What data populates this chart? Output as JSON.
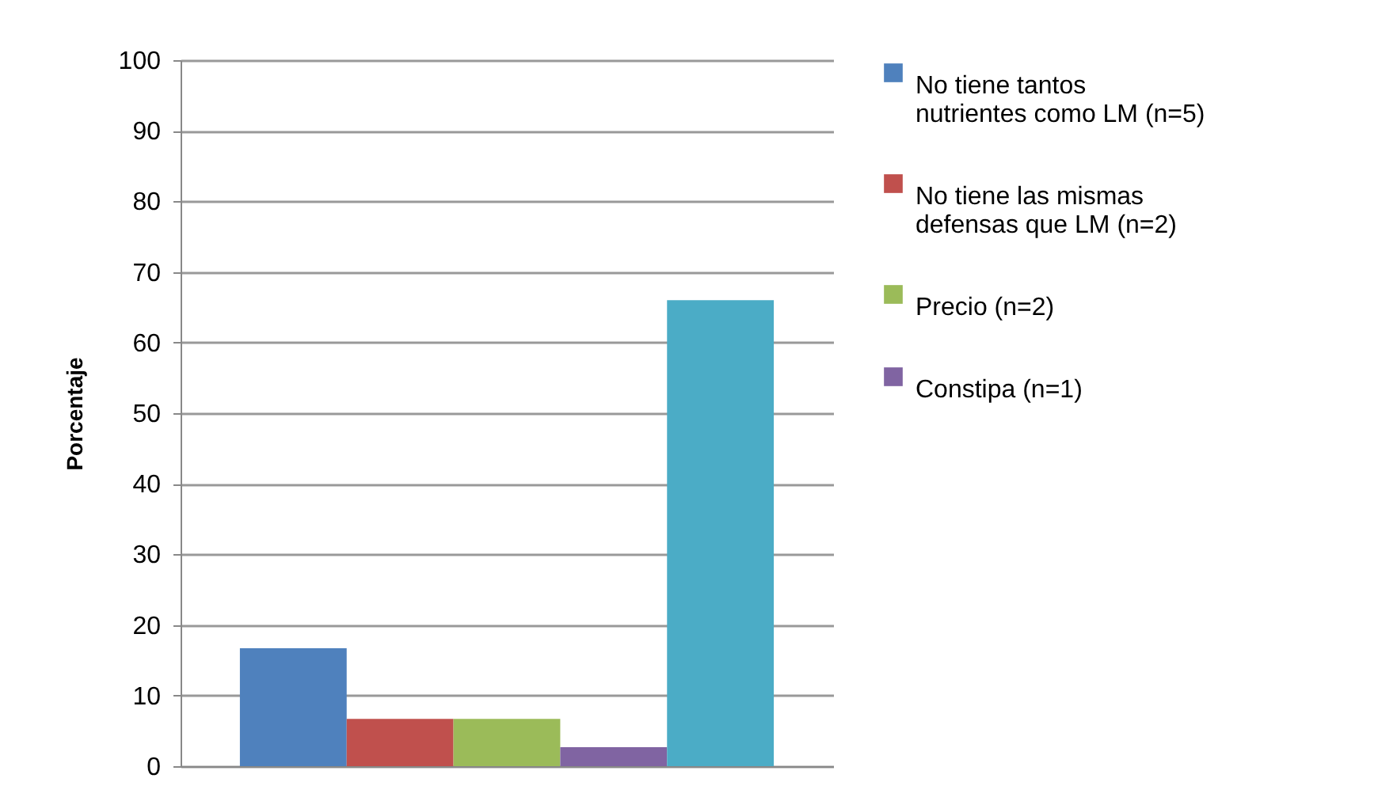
{
  "chart_data": {
    "type": "bar",
    "ylabel": "Porcentaje",
    "categories": [
      null
    ],
    "series": [
      {
        "name": "No tiene tantos nutrientes como LM (n=5)",
        "color": "#4f81bd",
        "values": [
          16.7
        ]
      },
      {
        "name": "No tiene las mismas defensas que LM (n=2)",
        "color": "#c0504d",
        "values": [
          6.7
        ]
      },
      {
        "name": "Precio (n=2)",
        "color": "#9bbb59",
        "values": [
          6.7
        ]
      },
      {
        "name": "Constipa (n=1)",
        "color": "#8064a2",
        "values": [
          2.7
        ]
      },
      {
        "color": "#4bacc6",
        "values": [
          66
        ]
      }
    ],
    "ylim": [
      0,
      100
    ],
    "yticks": [
      0,
      10,
      20,
      30,
      40,
      50,
      60,
      70,
      80,
      90,
      100
    ],
    "grid": "y",
    "legend": "right",
    "tick_labels": "y"
  }
}
